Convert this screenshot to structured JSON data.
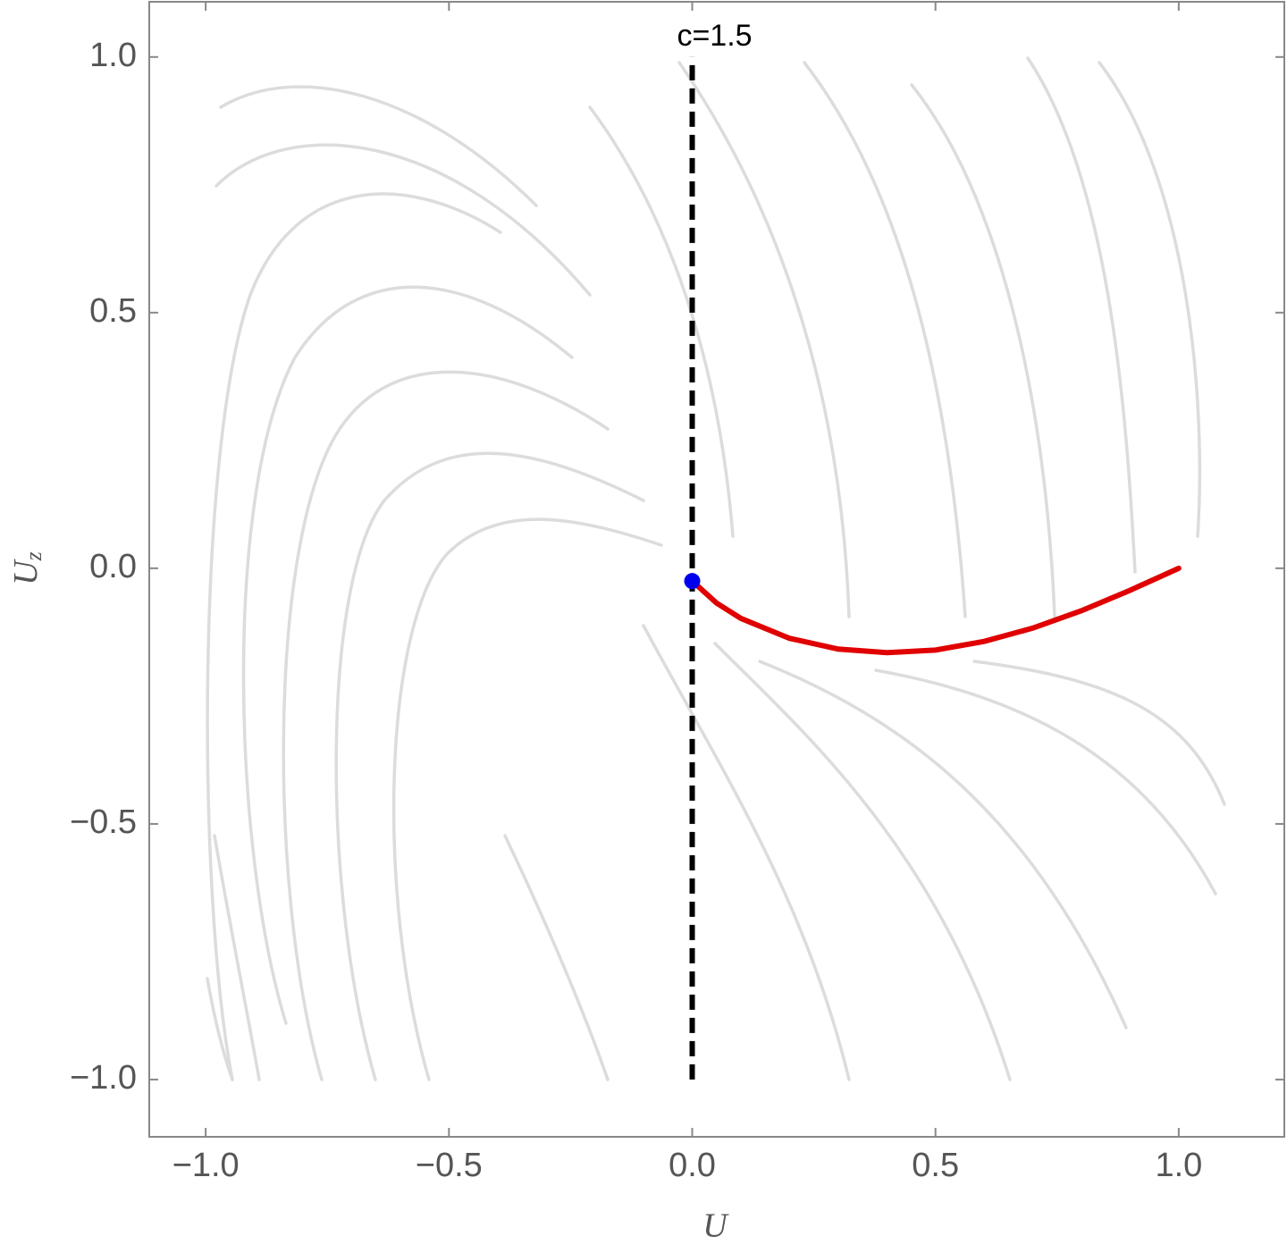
{
  "chart_data": {
    "type": "line",
    "x_label": "U",
    "y_label": {
      "main": "U",
      "sub": "z"
    },
    "xlim": [
      -1.116,
      1.217
    ],
    "ylim": [
      -1.112,
      1.108
    ],
    "xticks": [
      {
        "value": -1,
        "label": "−1.0"
      },
      {
        "value": -0.5,
        "label": "−0.5"
      },
      {
        "value": 0,
        "label": "0.0"
      },
      {
        "value": 0.5,
        "label": "0.5"
      },
      {
        "value": 1,
        "label": "1.0"
      }
    ],
    "yticks": [
      {
        "value": -1,
        "label": "−1.0"
      },
      {
        "value": -0.5,
        "label": "−0.5"
      },
      {
        "value": 0,
        "label": "0.0"
      },
      {
        "value": 0.5,
        "label": "0.5"
      },
      {
        "value": 1,
        "label": "1.0"
      }
    ],
    "series": [
      {
        "color": "#e00000",
        "x": [
          0,
          0.05,
          0.1,
          0.2,
          0.3,
          0.4,
          0.5,
          0.6,
          0.7,
          0.8,
          0.9,
          1.0
        ],
        "values": [
          -0.025,
          -0.068,
          -0.098,
          -0.137,
          -0.158,
          -0.165,
          -0.16,
          -0.143,
          -0.117,
          -0.083,
          -0.043,
          0
        ]
      }
    ],
    "points": [
      {
        "x": 0,
        "y": -0.025,
        "color": "#0000ee"
      }
    ],
    "reference_line": {
      "x": 0,
      "y": [
        -1,
        1
      ],
      "color": "#000000",
      "label": "c=1.5"
    }
  }
}
